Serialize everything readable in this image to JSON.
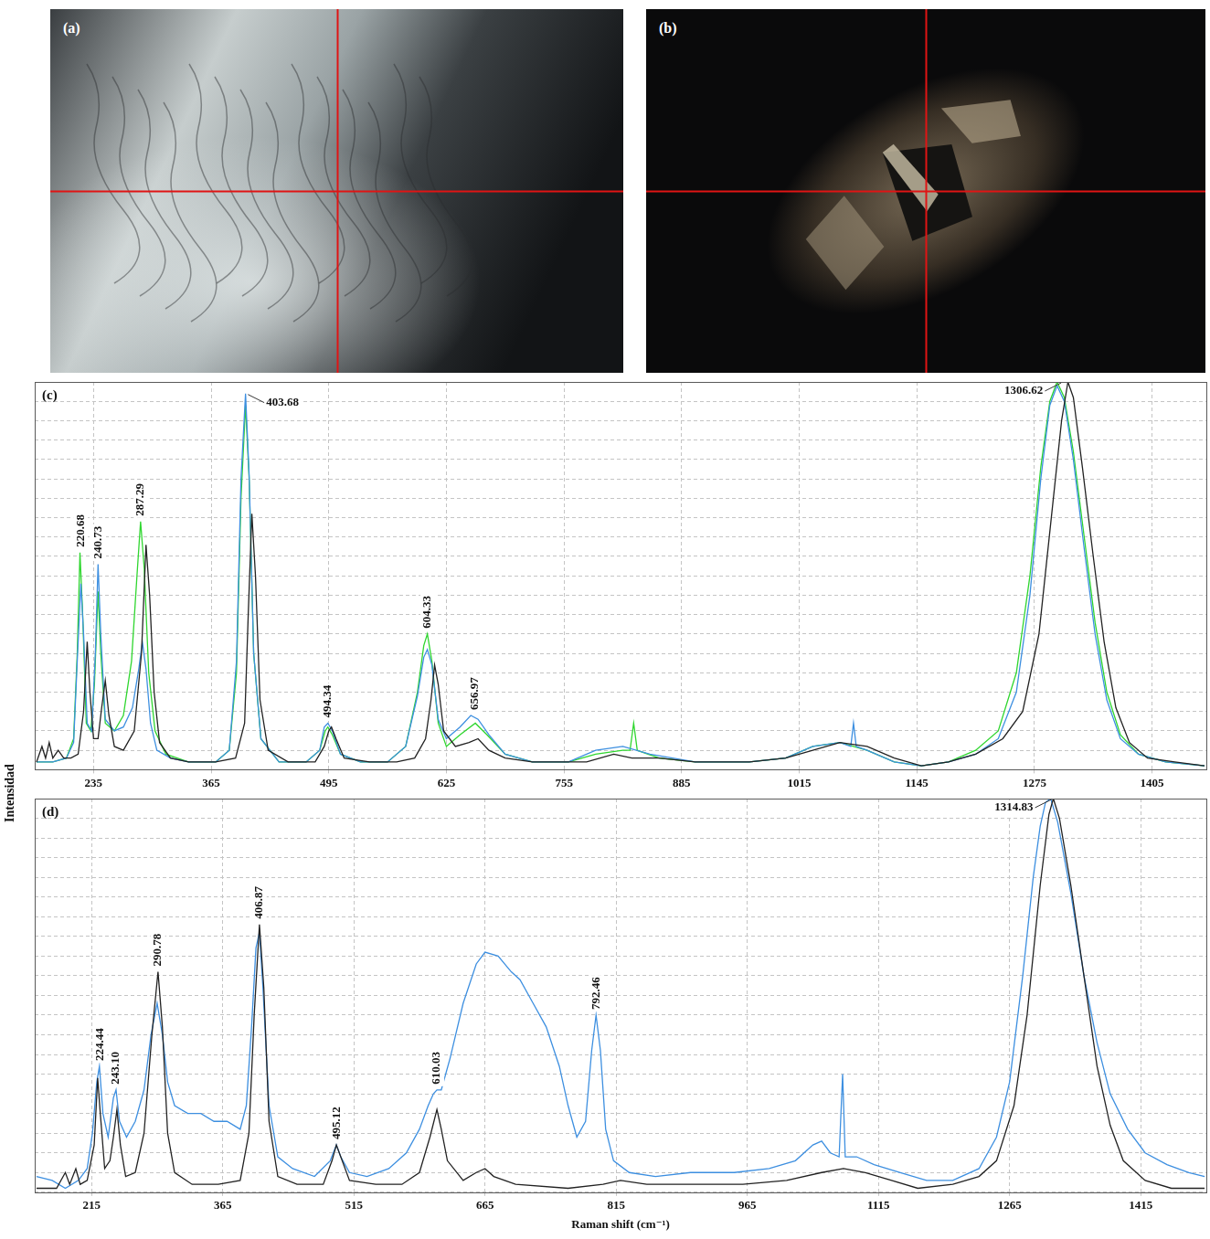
{
  "photos": [
    {
      "label": "(a)"
    },
    {
      "label": "(b)"
    }
  ],
  "ylabel": "Intensidad",
  "chart_data": [
    {
      "type": "line",
      "panel": "(c)",
      "xlim": [
        170,
        1465
      ],
      "xticks": [
        235,
        365,
        495,
        625,
        755,
        885,
        1015,
        1145,
        1275,
        1405
      ],
      "ylim": [
        0,
        100
      ],
      "yticks": [
        0,
        5,
        10,
        15,
        20,
        25,
        30,
        35,
        40,
        45,
        50,
        55,
        60,
        65,
        70,
        75,
        80,
        85,
        90,
        95,
        100
      ],
      "grid": true,
      "tick_labels": "x",
      "series": [
        {
          "color": "#222222",
          "x": [
            172,
            178,
            182,
            186,
            190,
            196,
            202,
            210,
            218,
            224,
            228,
            231,
            235,
            240,
            244,
            248,
            252,
            258,
            268,
            280,
            288,
            293,
            297,
            302,
            308,
            320,
            340,
            370,
            392,
            402,
            406,
            410,
            414,
            419,
            428,
            450,
            480,
            490,
            495,
            498,
            503,
            512,
            540,
            570,
            590,
            602,
            608,
            612,
            616,
            622,
            635,
            650,
            660,
            672,
            690,
            720,
            780,
            810,
            830,
            860,
            900,
            960,
            1000,
            1030,
            1060,
            1090,
            1120,
            1150,
            1180,
            1210,
            1240,
            1262,
            1280,
            1295,
            1305,
            1312,
            1318,
            1328,
            1340,
            1352,
            1365,
            1380,
            1400,
            1430,
            1463
          ],
          "values": [
            2,
            6,
            3,
            7,
            3,
            5,
            3,
            3,
            4,
            15,
            33,
            20,
            8,
            8,
            16,
            23,
            14,
            6,
            5,
            10,
            30,
            58,
            45,
            20,
            7,
            3,
            2,
            2,
            3,
            12,
            40,
            66,
            50,
            18,
            5,
            2,
            2,
            6,
            10,
            11,
            8,
            3,
            2,
            2,
            3,
            8,
            18,
            27,
            22,
            10,
            6,
            7,
            8,
            5,
            3,
            2,
            2,
            4,
            3,
            3,
            2,
            2,
            3,
            5,
            7,
            6,
            3,
            1,
            2,
            4,
            8,
            15,
            35,
            68,
            90,
            100,
            96,
            78,
            55,
            33,
            16,
            7,
            3,
            2,
            1
          ]
        },
        {
          "color": "#3d8fe0",
          "x": [
            172,
            190,
            205,
            213,
            217,
            221,
            224,
            228,
            233,
            237,
            240,
            243,
            248,
            258,
            268,
            278,
            285,
            289,
            293,
            298,
            305,
            320,
            340,
            370,
            385,
            393,
            398,
            403,
            407,
            412,
            420,
            440,
            470,
            485,
            490,
            494,
            499,
            508,
            530,
            560,
            580,
            593,
            600,
            604,
            609,
            616,
            625,
            640,
            652,
            660,
            672,
            690,
            720,
            760,
            790,
            820,
            850,
            900,
            960,
            1000,
            1030,
            1060,
            1072,
            1075,
            1078,
            1090,
            1120,
            1150,
            1180,
            1210,
            1235,
            1255,
            1270,
            1282,
            1292,
            1300,
            1308,
            1318,
            1330,
            1342,
            1355,
            1370,
            1390,
            1420,
            1463
          ],
          "values": [
            2,
            2,
            3,
            7,
            28,
            48,
            35,
            12,
            10,
            30,
            53,
            35,
            13,
            10,
            11,
            16,
            26,
            33,
            26,
            12,
            5,
            3,
            2,
            2,
            5,
            28,
            75,
            97,
            76,
            30,
            8,
            2,
            2,
            5,
            11,
            12,
            10,
            4,
            2,
            2,
            6,
            19,
            29,
            31,
            27,
            13,
            8,
            11,
            14,
            13,
            9,
            4,
            2,
            2,
            5,
            6,
            4,
            2,
            2,
            3,
            6,
            7,
            6,
            12,
            6,
            5,
            2,
            1,
            2,
            4,
            8,
            20,
            45,
            75,
            94,
            99,
            95,
            80,
            57,
            35,
            18,
            8,
            4,
            2,
            1
          ]
        },
        {
          "color": "#2fd62f",
          "x": [
            172,
            190,
            205,
            213,
            217,
            220,
            223,
            227,
            232,
            236,
            240,
            243,
            248,
            258,
            268,
            277,
            283,
            287,
            291,
            296,
            303,
            315,
            340,
            370,
            385,
            393,
            398,
            403,
            407,
            412,
            420,
            440,
            470,
            485,
            491,
            494,
            499,
            508,
            530,
            560,
            580,
            593,
            600,
            604,
            609,
            616,
            625,
            640,
            657,
            670,
            690,
            720,
            760,
            790,
            820,
            828,
            832,
            836,
            860,
            900,
            960,
            1000,
            1030,
            1060,
            1090,
            1120,
            1150,
            1180,
            1210,
            1235,
            1255,
            1270,
            1282,
            1292,
            1300,
            1308,
            1318,
            1330,
            1342,
            1355,
            1370,
            1390,
            1420,
            1463
          ],
          "values": [
            2,
            2,
            3,
            8,
            30,
            56,
            40,
            12,
            10,
            22,
            46,
            30,
            12,
            10,
            14,
            28,
            50,
            64,
            52,
            25,
            10,
            4,
            2,
            2,
            5,
            25,
            70,
            94,
            75,
            30,
            8,
            2,
            2,
            5,
            10,
            11,
            9,
            4,
            2,
            2,
            6,
            20,
            32,
            35,
            28,
            12,
            6,
            9,
            12,
            9,
            4,
            2,
            2,
            4,
            5,
            5,
            12,
            5,
            3,
            2,
            2,
            3,
            6,
            7,
            5,
            2,
            1,
            2,
            5,
            10,
            25,
            50,
            78,
            95,
            100,
            96,
            82,
            60,
            38,
            20,
            9,
            4,
            2,
            1
          ]
        }
      ],
      "annotations": [
        {
          "text": "220.68",
          "x": 220.68,
          "y": 56
        },
        {
          "text": "240.73",
          "x": 240.73,
          "y": 53
        },
        {
          "text": "287.29",
          "x": 287.29,
          "y": 64
        },
        {
          "text": "403.68",
          "x": 403.68,
          "y": 97
        },
        {
          "text": "494.34",
          "x": 494.34,
          "y": 12
        },
        {
          "text": "604.33",
          "x": 604.33,
          "y": 35
        },
        {
          "text": "656.97",
          "x": 656.97,
          "y": 14
        },
        {
          "text": "1306.62",
          "x": 1306.62,
          "y": 100
        }
      ]
    },
    {
      "type": "line",
      "panel": "(d)",
      "xlabel": "Raman shift (cm⁻¹)",
      "xlim": [
        150,
        1490
      ],
      "xticks": [
        215,
        365,
        515,
        665,
        815,
        965,
        1115,
        1265,
        1415
      ],
      "ylim": [
        0,
        100
      ],
      "yticks": [
        0,
        5,
        10,
        15,
        20,
        25,
        30,
        35,
        40,
        45,
        50,
        55,
        60,
        65,
        70,
        75,
        80,
        85,
        90,
        95,
        100
      ],
      "grid": true,
      "tick_labels": "x",
      "series": [
        {
          "color": "#222222",
          "x": [
            152,
            175,
            185,
            190,
            197,
            202,
            210,
            218,
            222,
            225,
            230,
            236,
            240,
            244,
            248,
            254,
            265,
            275,
            284,
            291,
            296,
            302,
            310,
            330,
            360,
            385,
            395,
            401,
            407,
            412,
            418,
            428,
            450,
            480,
            490,
            495,
            500,
            510,
            540,
            570,
            590,
            602,
            610,
            615,
            622,
            640,
            655,
            665,
            675,
            700,
            760,
            800,
            820,
            850,
            900,
            960,
            1010,
            1050,
            1075,
            1100,
            1130,
            1160,
            1200,
            1230,
            1250,
            1270,
            1285,
            1300,
            1310,
            1315,
            1322,
            1335,
            1350,
            1365,
            1380,
            1395,
            1420,
            1450,
            1488
          ],
          "values": [
            1,
            1,
            5,
            2,
            6,
            2,
            3,
            12,
            29,
            20,
            6,
            8,
            14,
            21,
            12,
            4,
            5,
            15,
            40,
            56,
            42,
            15,
            5,
            2,
            2,
            3,
            15,
            45,
            68,
            52,
            18,
            4,
            2,
            2,
            8,
            12,
            9,
            3,
            2,
            2,
            5,
            14,
            21,
            16,
            8,
            3,
            5,
            6,
            4,
            2,
            1,
            2,
            3,
            2,
            2,
            2,
            3,
            5,
            6,
            5,
            3,
            1,
            2,
            4,
            8,
            22,
            45,
            78,
            96,
            100,
            95,
            78,
            55,
            32,
            17,
            8,
            3,
            1,
            1
          ]
        },
        {
          "color": "#3d8fe0",
          "x": [
            152,
            170,
            185,
            200,
            210,
            216,
            221,
            224,
            228,
            234,
            240,
            243,
            247,
            255,
            265,
            275,
            283,
            290,
            296,
            302,
            310,
            325,
            340,
            355,
            370,
            385,
            392,
            398,
            403,
            407,
            411,
            418,
            428,
            445,
            470,
            488,
            495,
            500,
            510,
            530,
            555,
            575,
            590,
            600,
            606,
            610,
            615,
            625,
            640,
            655,
            665,
            680,
            695,
            705,
            720,
            735,
            750,
            760,
            770,
            780,
            787,
            792,
            797,
            803,
            812,
            830,
            860,
            900,
            950,
            990,
            1020,
            1040,
            1050,
            1060,
            1070,
            1074,
            1077,
            1090,
            1110,
            1140,
            1170,
            1200,
            1230,
            1250,
            1265,
            1280,
            1292,
            1300,
            1306,
            1312,
            1320,
            1335,
            1350,
            1365,
            1380,
            1400,
            1420,
            1445,
            1470,
            1488
          ],
          "values": [
            4,
            3,
            1,
            3,
            6,
            15,
            28,
            32,
            20,
            14,
            24,
            26,
            18,
            14,
            18,
            26,
            40,
            48,
            40,
            28,
            22,
            20,
            20,
            18,
            18,
            16,
            22,
            42,
            62,
            66,
            52,
            22,
            9,
            6,
            4,
            8,
            12,
            9,
            5,
            4,
            6,
            10,
            16,
            22,
            25,
            26,
            26,
            34,
            48,
            58,
            61,
            60,
            56,
            54,
            48,
            42,
            32,
            22,
            14,
            18,
            36,
            45,
            36,
            16,
            8,
            5,
            4,
            5,
            5,
            6,
            8,
            12,
            13,
            10,
            9,
            30,
            9,
            9,
            7,
            5,
            3,
            3,
            6,
            14,
            28,
            55,
            80,
            93,
            99,
            100,
            94,
            76,
            55,
            38,
            25,
            16,
            10,
            7,
            5,
            4
          ]
        }
      ],
      "annotations": [
        {
          "text": "224.44",
          "x": 224.44,
          "y": 32
        },
        {
          "text": "243.10",
          "x": 243.1,
          "y": 26
        },
        {
          "text": "290.78",
          "x": 290.78,
          "y": 56
        },
        {
          "text": "406.87",
          "x": 406.87,
          "y": 68
        },
        {
          "text": "495.12",
          "x": 495.12,
          "y": 12
        },
        {
          "text": "610.03",
          "x": 610.03,
          "y": 26
        },
        {
          "text": "792.46",
          "x": 792.46,
          "y": 45
        },
        {
          "text": "1314.83",
          "x": 1314.83,
          "y": 100
        }
      ]
    }
  ]
}
